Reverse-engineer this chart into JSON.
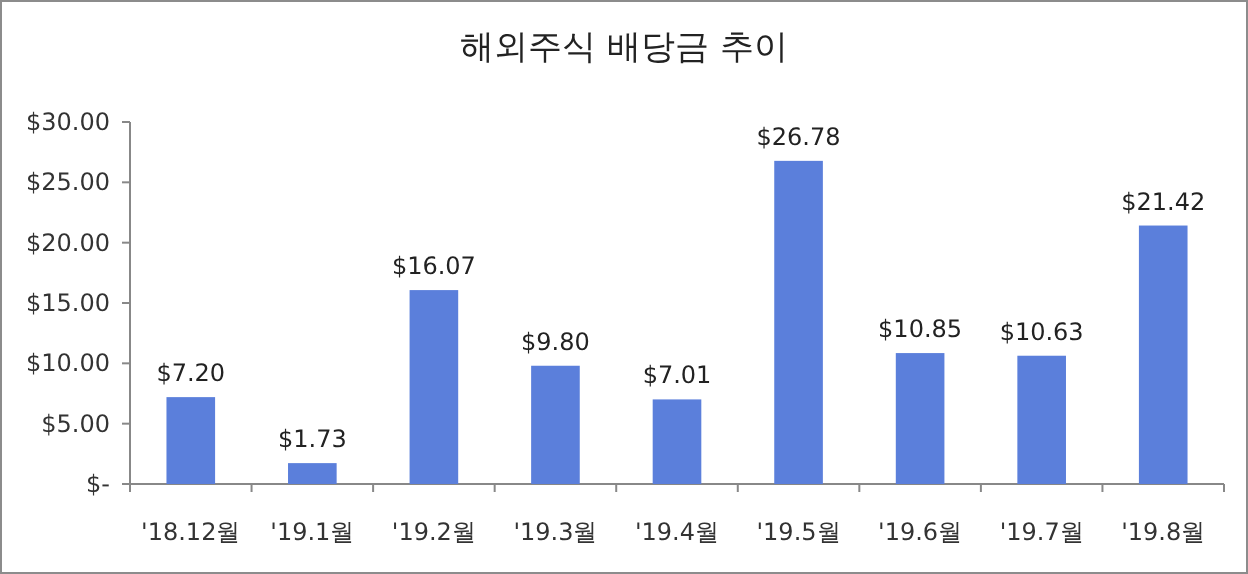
{
  "chart_data": {
    "type": "bar",
    "title": "해외주식 배당금 추이",
    "categories": [
      "'18.12월",
      "'19.1월",
      "'19.2월",
      "'19.3월",
      "'19.4월",
      "'19.5월",
      "'19.6월",
      "'19.7월",
      "'19.8월"
    ],
    "values": [
      7.2,
      1.73,
      16.07,
      9.8,
      7.01,
      26.78,
      10.85,
      10.63,
      21.42
    ],
    "value_labels": [
      "$7.20",
      "$1.73",
      "$16.07",
      "$9.80",
      "$7.01",
      "$26.78",
      "$10.85",
      "$10.63",
      "$21.42"
    ],
    "color": "#5b7fdb",
    "ylim": [
      0,
      30
    ],
    "yticks": [
      {
        "value": 0,
        "label": "$-"
      },
      {
        "value": 5,
        "label": "$5.00"
      },
      {
        "value": 10,
        "label": "$10.00"
      },
      {
        "value": 15,
        "label": "$15.00"
      },
      {
        "value": 20,
        "label": "$20.00"
      },
      {
        "value": 25,
        "label": "$25.00"
      },
      {
        "value": 30,
        "label": "$30.00"
      }
    ]
  }
}
